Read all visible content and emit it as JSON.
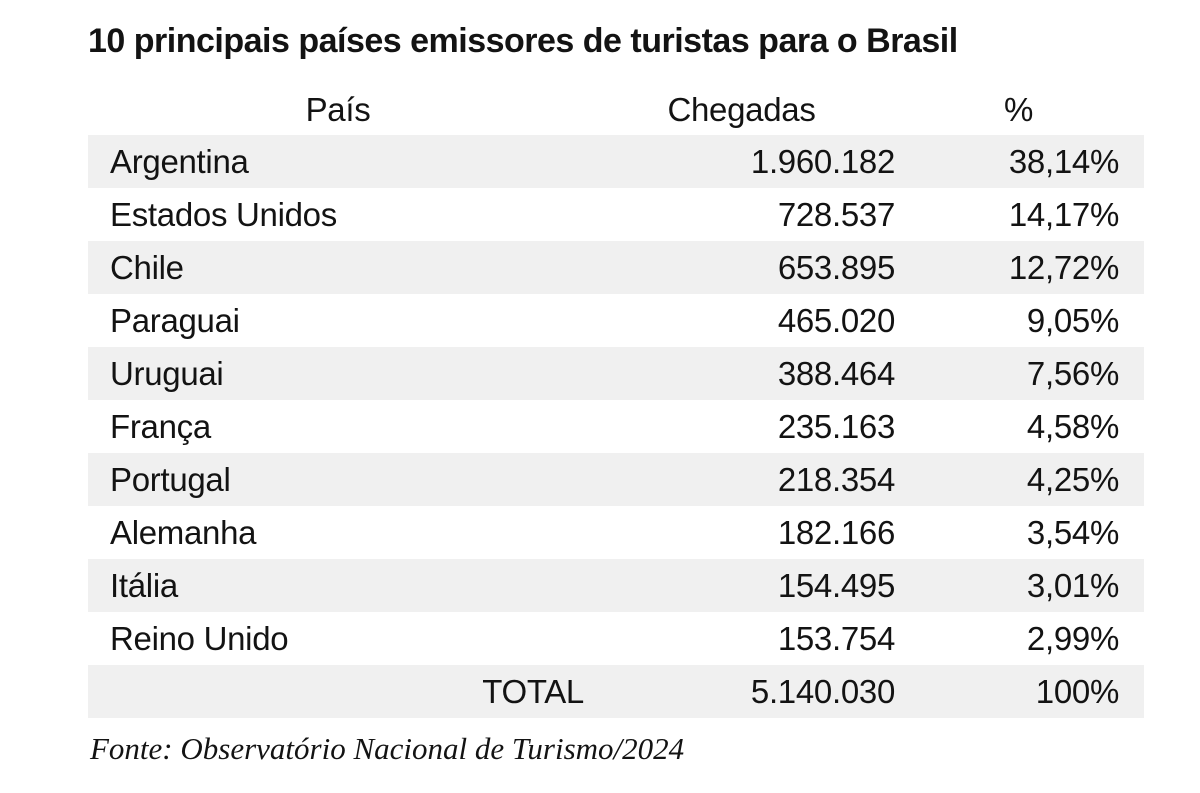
{
  "title": "10 principais países emissores de turistas para o Brasil",
  "table": {
    "headers": {
      "country": "País",
      "arrivals": "Chegadas",
      "percent": "%"
    },
    "rows": [
      {
        "country": "Argentina",
        "arrivals": "1.960.182",
        "percent": "38,14%"
      },
      {
        "country": "Estados Unidos",
        "arrivals": "728.537",
        "percent": "14,17%"
      },
      {
        "country": "Chile",
        "arrivals": "653.895",
        "percent": "12,72%"
      },
      {
        "country": "Paraguai",
        "arrivals": "465.020",
        "percent": "9,05%"
      },
      {
        "country": "Uruguai",
        "arrivals": "388.464",
        "percent": "7,56%"
      },
      {
        "country": "França",
        "arrivals": "235.163",
        "percent": "4,58%"
      },
      {
        "country": "Portugal",
        "arrivals": "218.354",
        "percent": "4,25%"
      },
      {
        "country": "Alemanha",
        "arrivals": "182.166",
        "percent": "3,54%"
      },
      {
        "country": "Itália",
        "arrivals": "154.495",
        "percent": "3,01%"
      },
      {
        "country": "Reino Unido",
        "arrivals": "153.754",
        "percent": "2,99%"
      }
    ],
    "total": {
      "label": "TOTAL",
      "arrivals": "5.140.030",
      "percent": "100%"
    }
  },
  "source": "Fonte: Observatório Nacional de Turismo/2024",
  "colors": {
    "background": "#ffffff",
    "stripe": "#f0f0f0",
    "text": "#131313"
  },
  "chart_data": {
    "type": "table",
    "title": "10 principais países emissores de turistas para o Brasil",
    "columns": [
      "País",
      "Chegadas",
      "%"
    ],
    "rows": [
      [
        "Argentina",
        1960182,
        38.14
      ],
      [
        "Estados Unidos",
        728537,
        14.17
      ],
      [
        "Chile",
        653895,
        12.72
      ],
      [
        "Paraguai",
        465020,
        9.05
      ],
      [
        "Uruguai",
        388464,
        7.56
      ],
      [
        "França",
        235163,
        4.58
      ],
      [
        "Portugal",
        218354,
        4.25
      ],
      [
        "Alemanha",
        182166,
        3.54
      ],
      [
        "Itália",
        154495,
        3.01
      ],
      [
        "Reino Unido",
        153754,
        2.99
      ]
    ],
    "total": [
      "TOTAL",
      5140030,
      100
    ],
    "source": "Fonte: Observatório Nacional de Turismo/2024",
    "layout": {
      "row_striping": true,
      "stripe_color": "#f0f0f0",
      "numeric_alignment": "right"
    }
  }
}
